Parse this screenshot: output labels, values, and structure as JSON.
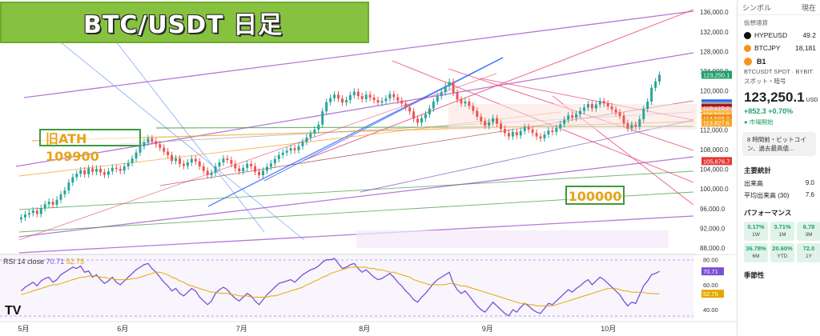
{
  "banner": {
    "title": "BTC/USDT 日足"
  },
  "annotations": {
    "ath": "旧ATH 109900",
    "level": "100000"
  },
  "rsi": {
    "label": "RSI 14 close",
    "value": "70.71",
    "ma": "52.75"
  },
  "tv_logo": "TV",
  "chart_data": [
    {
      "type": "candlestick",
      "title": "BTC/USDT 日足",
      "x_ticks": [
        "5月",
        "6月",
        "7月",
        "8月",
        "9月",
        "10月"
      ],
      "y_ticks": [
        "136,000.0",
        "132,000.0",
        "128,000.0",
        "124,000.0",
        "120,000.0",
        "116,000.0",
        "112,000.0",
        "108,000.0",
        "104,000.0",
        "100,000.0",
        "96,000.0",
        "92,000.0",
        "88,000.0"
      ],
      "ylim": [
        87000,
        137500
      ],
      "close": [
        94200,
        94800,
        95100,
        95600,
        94900,
        96100,
        96900,
        97400,
        96800,
        97800,
        98900,
        99700,
        101300,
        102400,
        103100,
        103800,
        103000,
        104200,
        103500,
        104100,
        103400,
        102900,
        103600,
        104300,
        104100,
        103700,
        104600,
        105300,
        106200,
        107400,
        108700,
        109500,
        110300,
        109700,
        109100,
        108400,
        107600,
        106900,
        105700,
        106200,
        105100,
        104700,
        105400,
        106100,
        105600,
        104600,
        103700,
        102800,
        103300,
        104600,
        105400,
        106200,
        105900,
        105100,
        104200,
        103600,
        104300,
        105100,
        104600,
        103500,
        102800,
        103700,
        104500,
        105200,
        106100,
        106900,
        107400,
        107800,
        108300,
        107900,
        108700,
        109600,
        110500,
        111300,
        112100,
        113100,
        115800,
        117700,
        118500,
        119200,
        118400,
        117600,
        118100,
        119100,
        119800,
        118900,
        118300,
        119200,
        118600,
        118100,
        117600,
        117900,
        118400,
        119300,
        118700,
        118000,
        117400,
        116600,
        115800,
        114300,
        113500,
        114400,
        115200,
        116400,
        117800,
        118900,
        119700,
        120900,
        121800,
        119600,
        118200,
        117400,
        117800,
        116900,
        115900,
        114700,
        113800,
        112900,
        113600,
        114400,
        113300,
        112200,
        111400,
        110700,
        111600,
        110900,
        111800,
        112600,
        112100,
        111400,
        110700,
        110300,
        111100,
        111900,
        111600,
        112400,
        113200,
        114100,
        115000,
        114500,
        115200,
        115900,
        116600,
        117300,
        116400,
        117200,
        117900,
        117400,
        116800,
        116200,
        115600,
        114900,
        113400,
        112300,
        113100,
        112700,
        114200,
        116300,
        117800,
        120600,
        121900,
        123250
      ],
      "series": [
        {
          "name": "RSI",
          "values": [
            55,
            58,
            60,
            62,
            59,
            63,
            65,
            66,
            62,
            64,
            68,
            70,
            72,
            74,
            73,
            75,
            70,
            71,
            66,
            68,
            64,
            61,
            63,
            66,
            62,
            60,
            63,
            66,
            69,
            72,
            74,
            76,
            77,
            73,
            70,
            66,
            62,
            59,
            55,
            57,
            53,
            51,
            54,
            57,
            55,
            50,
            47,
            44,
            47,
            53,
            56,
            58,
            56,
            52,
            49,
            47,
            50,
            53,
            51,
            47,
            44,
            48,
            52,
            55,
            58,
            61,
            62,
            63,
            64,
            62,
            65,
            68,
            70,
            72,
            73,
            75,
            78,
            80,
            80,
            81,
            77,
            73,
            74,
            76,
            77,
            73,
            70,
            72,
            69,
            66,
            64,
            65,
            67,
            69,
            66,
            62,
            59,
            55,
            52,
            48,
            46,
            50,
            53,
            57,
            61,
            64,
            66,
            68,
            70,
            61,
            56,
            53,
            55,
            51,
            47,
            43,
            40,
            38,
            42,
            46,
            43,
            40,
            37,
            35,
            40,
            38,
            42,
            45,
            43,
            40,
            38,
            37,
            41,
            45,
            44,
            47,
            50,
            53,
            56,
            54,
            57,
            59,
            62,
            64,
            60,
            63,
            66,
            64,
            61,
            58,
            55,
            52,
            47,
            43,
            46,
            45,
            52,
            59,
            63,
            68,
            69,
            70.71
          ]
        },
        {
          "name": "RSI MA",
          "values": [
            52,
            53,
            54,
            55,
            56,
            57,
            58,
            59,
            60,
            60,
            61,
            62,
            63,
            64,
            65,
            66,
            66,
            67,
            67,
            67,
            66,
            66,
            65,
            65,
            64,
            64,
            64,
            64,
            65,
            65,
            66,
            67,
            68,
            69,
            70,
            70,
            69,
            68,
            66,
            65,
            63,
            62,
            60,
            59,
            58,
            57,
            56,
            55,
            54,
            54,
            53,
            53,
            53,
            52,
            52,
            51,
            51,
            51,
            50,
            50,
            50,
            50,
            50,
            51,
            51,
            52,
            53,
            54,
            55,
            56,
            57,
            58,
            60,
            61,
            63,
            64,
            66,
            67,
            69,
            70,
            71,
            72,
            73,
            74,
            74,
            74,
            74,
            74,
            73,
            73,
            72,
            72,
            71,
            70,
            70,
            69,
            68,
            67,
            66,
            64,
            63,
            62,
            61,
            60,
            60,
            60,
            60,
            60,
            61,
            61,
            60,
            59,
            59,
            58,
            57,
            56,
            55,
            54,
            53,
            52,
            51,
            50,
            49,
            48,
            47,
            46,
            45,
            45,
            44,
            44,
            43,
            43,
            43,
            43,
            43,
            44,
            45,
            46,
            47,
            48,
            49,
            50,
            51,
            52,
            53,
            54,
            55,
            56,
            57,
            57,
            57,
            56,
            55,
            55,
            54,
            54,
            54,
            54,
            53,
            53,
            52.75,
            52.75
          ]
        }
      ],
      "rsi_ticks": [
        "80.00",
        "70.71",
        "60.00",
        "52.75",
        "40.00"
      ],
      "rsi_ylim": [
        33,
        83
      ],
      "price_labels": [
        {
          "text": "123,250.1",
          "price": 123250,
          "color": "#22a06b"
        },
        {
          "text": "117,424.2",
          "price": 117424,
          "color": "#2962ff"
        },
        {
          "text": "117,310.6",
          "price": 116950,
          "color": "#9e9e9e"
        },
        {
          "text": "117,197.0",
          "price": 116480,
          "color": "#a01919"
        },
        {
          "text": "116,516.1",
          "price": 115880,
          "color": "#f7b1b1"
        },
        {
          "text": "115,529.8",
          "price": 115200,
          "color": "#f0c040"
        },
        {
          "text": "114,588.3",
          "price": 114350,
          "color": "#f58a1f"
        },
        {
          "text": "113,827.6",
          "price": 113500,
          "color": "#f5a623"
        },
        {
          "text": "105,676.7",
          "price": 105676,
          "color": "#e53935"
        }
      ]
    }
  ],
  "sidebar": {
    "header_label": "シンボル",
    "header_right": "現在",
    "section_label": "仮想通貨",
    "watchlist": [
      {
        "symbol": "HYPEUSD",
        "value": "49.2",
        "color": "#0d0d0d"
      },
      {
        "symbol": "BTCJPY",
        "value": "18,181",
        "color": "#f7931a"
      }
    ],
    "symbol": "B1",
    "pair": "BTCUSDT SPOT",
    "exchange": "BYBIT",
    "type": "スポット・暗号",
    "price": "123,250.1",
    "currency": "USD",
    "change": "+852.3",
    "change_pct": "+0.70%",
    "market": "市場開始",
    "news": "8 時間前・ビットコイン、過去最高値...",
    "stats_title": "主要統計",
    "volume_label": "出来高",
    "volume_value": "9.0",
    "avg_volume_label": "平均出来高 (30)",
    "avg_volume_value": "7.6",
    "perf_title": "パフォーマンス",
    "perf": [
      {
        "value": "0.17%",
        "period": "1W"
      },
      {
        "value": "3.71%",
        "period": "1M"
      },
      {
        "value": "6.78",
        "period": "3M"
      },
      {
        "value": "36.78%",
        "period": "6M"
      },
      {
        "value": "20.60%",
        "period": "YTD"
      },
      {
        "value": "72.0",
        "period": "1Y"
      }
    ],
    "season_title": "季節性"
  }
}
